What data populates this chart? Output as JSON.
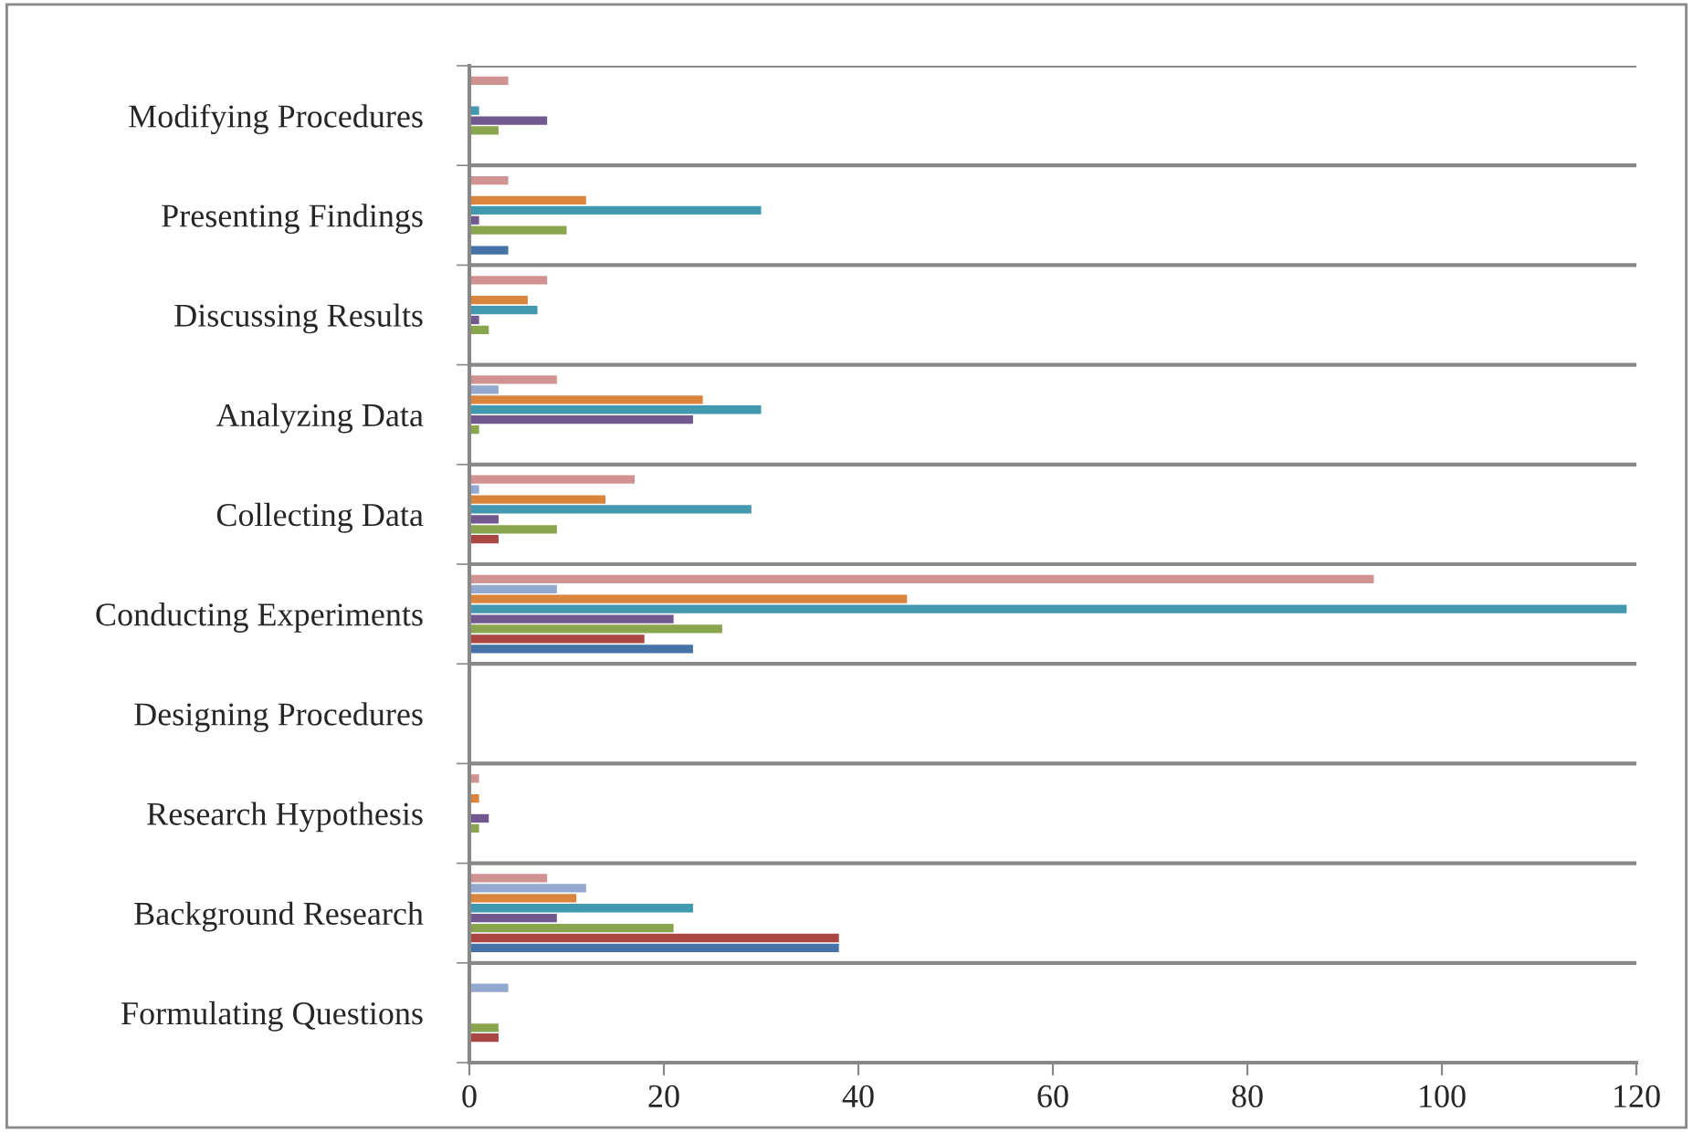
{
  "chart_data": {
    "type": "bar",
    "orientation": "horizontal",
    "categories": [
      "Modifying Procedures",
      "Presenting Findings",
      "Discussing Results",
      "Analyzing Data",
      "Collecting Data",
      "Conducting Experiments",
      "Designing Procedures",
      "Research Hypothesis",
      "Background Research",
      "Formulating Questions"
    ],
    "series": [
      {
        "color": "#4572a7",
        "values": [
          0,
          4,
          0,
          0,
          0,
          23,
          0,
          0,
          38,
          0
        ]
      },
      {
        "color": "#aa4643",
        "values": [
          0,
          0,
          0,
          0,
          3,
          18,
          0,
          0,
          38,
          3
        ]
      },
      {
        "color": "#89a54e",
        "values": [
          3,
          10,
          2,
          1,
          9,
          26,
          0,
          1,
          21,
          3
        ]
      },
      {
        "color": "#71588f",
        "values": [
          8,
          1,
          1,
          23,
          3,
          21,
          0,
          2,
          9,
          0
        ]
      },
      {
        "color": "#4198af",
        "values": [
          1,
          30,
          7,
          30,
          29,
          119,
          0,
          0,
          23,
          0
        ]
      },
      {
        "color": "#db843d",
        "values": [
          0,
          12,
          6,
          24,
          14,
          45,
          0,
          1,
          11,
          0
        ]
      },
      {
        "color": "#93a9cf",
        "values": [
          0,
          0,
          0,
          3,
          1,
          9,
          0,
          0,
          12,
          4
        ]
      },
      {
        "color": "#d19392",
        "values": [
          4,
          4,
          8,
          9,
          17,
          93,
          0,
          1,
          8,
          0
        ]
      }
    ],
    "xlim": [
      0,
      120
    ],
    "xticks": [
      0,
      20,
      40,
      60,
      80,
      100,
      120
    ],
    "grid": "y",
    "legend": false
  }
}
